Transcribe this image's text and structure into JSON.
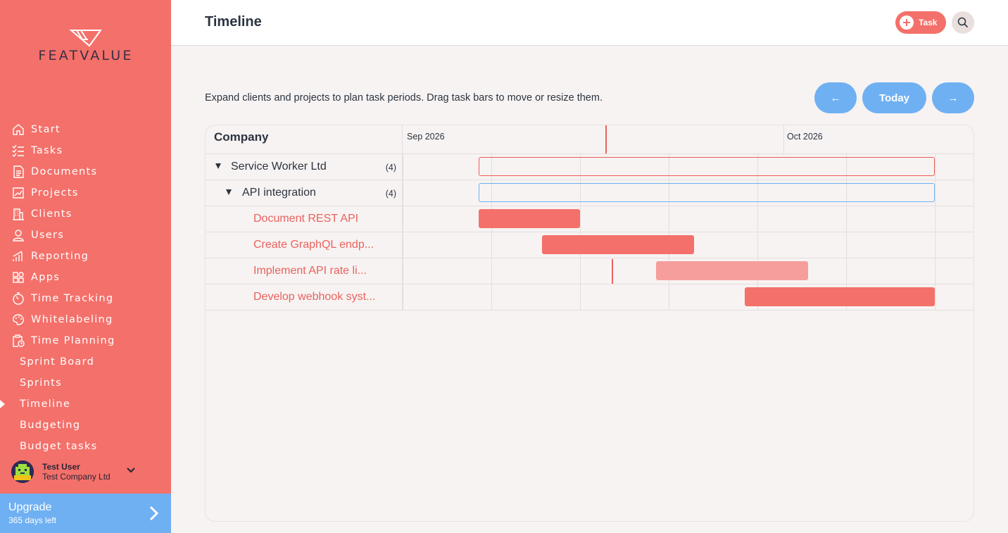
{
  "brand": {
    "name": "FEATVALUE"
  },
  "colors": {
    "sidebar": "#f4706a",
    "accent_blue": "#6fb0f2",
    "task_red": "#f4706a",
    "task_light": "#f59e9b"
  },
  "sidebar": {
    "items": [
      {
        "label": "Start",
        "icon": "home-icon"
      },
      {
        "label": "Tasks",
        "icon": "checklist-icon"
      },
      {
        "label": "Documents",
        "icon": "document-icon"
      },
      {
        "label": "Projects",
        "icon": "chart-icon"
      },
      {
        "label": "Clients",
        "icon": "building-icon"
      },
      {
        "label": "Users",
        "icon": "user-icon"
      },
      {
        "label": "Reporting",
        "icon": "bars-icon"
      },
      {
        "label": "Apps",
        "icon": "apps-icon"
      },
      {
        "label": "Time Tracking",
        "icon": "timer-icon"
      },
      {
        "label": "Whitelabeling",
        "icon": "palette-icon"
      },
      {
        "label": "Time Planning",
        "icon": "clipboard-clock-icon"
      }
    ],
    "sub_items": [
      {
        "label": "Sprint Board"
      },
      {
        "label": "Sprints"
      },
      {
        "label": "Timeline",
        "active": true
      },
      {
        "label": "Budgeting"
      },
      {
        "label": "Budget tasks"
      }
    ],
    "user": {
      "name": "Test User",
      "company": "Test Company Ltd"
    },
    "upgrade": {
      "title": "Upgrade",
      "subtitle": "365 days left"
    }
  },
  "header": {
    "title": "Timeline",
    "task_button": "Task"
  },
  "intro": "Expand clients and projects to plan task periods. Drag task bars to move or resize them.",
  "nav_buttons": {
    "prev": "←",
    "today": "Today",
    "next": "→"
  },
  "timeline": {
    "column_header": "Company",
    "months": [
      "Sep 2026",
      "Oct 2026"
    ],
    "rows": [
      {
        "name": "Service Worker Ltd",
        "count": "(4)",
        "type": "client"
      },
      {
        "name": "API integration",
        "count": "(4)",
        "type": "project"
      },
      {
        "name": "Document REST API",
        "type": "task"
      },
      {
        "name": "Create GraphQL endp...",
        "type": "task"
      },
      {
        "name": "Implement API rate li...",
        "type": "task"
      },
      {
        "name": "Develop webhook syst...",
        "type": "task"
      }
    ]
  }
}
